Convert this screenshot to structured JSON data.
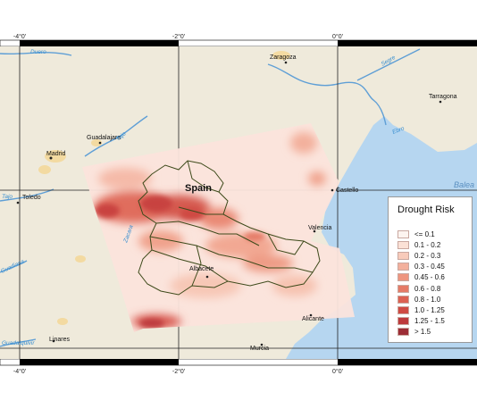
{
  "map": {
    "country_label": "Spain",
    "coords_top": [
      "-4°0'",
      "-2°0'",
      "0°0'"
    ],
    "coords_bottom": [
      "-4°0'",
      "-2°0'",
      "0°0'"
    ],
    "cities": [
      "Zaragoza",
      "Tarragona",
      "Guadalajara",
      "Madrid",
      "Toledo",
      "Castello",
      "Valencia",
      "Albacete",
      "Alicante",
      "Linares",
      "Murcia"
    ],
    "rivers": [
      "Duero",
      "Tajo",
      "Ebro",
      "Segre",
      "Zacara",
      "Tajo",
      "Guadiana",
      "Guadalquivir"
    ],
    "sea": "Balea",
    "colors": {
      "land": "#efeadb",
      "sea": "#b6d6f0",
      "river": "#5f9fd6",
      "boundary": "#3d4a1a",
      "risk_low": "#fbe4dc",
      "risk_high": "#b5283a"
    }
  },
  "legend": {
    "title": "Drought Risk",
    "items": [
      {
        "label": "<= 0.1",
        "color": "#fdf4ef"
      },
      {
        "label": "0.1 - 0.2",
        "color": "#fbe1d6"
      },
      {
        "label": "0.2 - 0.3",
        "color": "#f8cbbb"
      },
      {
        "label": "0.3 - 0.45",
        "color": "#f3b09c"
      },
      {
        "label": "0.45 - 0.6",
        "color": "#ee957f"
      },
      {
        "label": "0.6 - 0.8",
        "color": "#e57b67"
      },
      {
        "label": "0.8 - 1.0",
        "color": "#dc6152"
      },
      {
        "label": "1.0 - 1.25",
        "color": "#cf4a43"
      },
      {
        "label": "1.25 - 1.5",
        "color": "#bd3a3c"
      },
      {
        "label": "> 1.5",
        "color": "#9c2d36"
      }
    ]
  }
}
